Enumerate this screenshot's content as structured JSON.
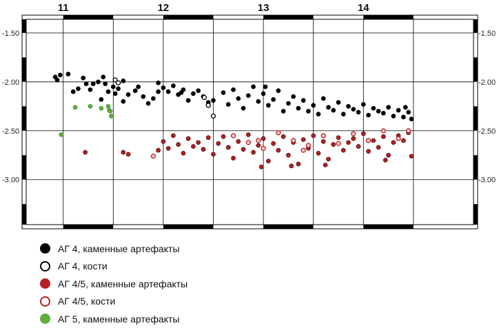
{
  "chart_data": {
    "type": "scatter",
    "title": "",
    "xlabel": "",
    "ylabel": "",
    "xlim": [
      10.63,
      15.1
    ],
    "ylim": [
      -3.46,
      -1.36
    ],
    "x_ticks": [
      11,
      12,
      13,
      14
    ],
    "y_ticks": [
      -1.5,
      -2.0,
      -2.5,
      -3.0
    ],
    "y_tick_labels": [
      "-1.50",
      "-2.00",
      "-2.50",
      "-3.00"
    ],
    "grid": true,
    "legend_position": "bottom",
    "colors": {
      "stone4": "#000000",
      "bone4": "#ffffff",
      "stone45": "#b52022",
      "bone45": "#f6cccc",
      "stone5": "#5fad3f"
    },
    "series": [
      {
        "name": "АГ 4, каменные артефакты",
        "marker": "filled",
        "color": "#000000",
        "points": [
          [
            10.92,
            -1.95
          ],
          [
            10.94,
            -1.98
          ],
          [
            10.97,
            -1.93
          ],
          [
            11.05,
            -1.92
          ],
          [
            11.1,
            -2.1
          ],
          [
            11.15,
            -2.07
          ],
          [
            11.2,
            -1.96
          ],
          [
            11.23,
            -2.02
          ],
          [
            11.27,
            -2.08
          ],
          [
            11.3,
            -2.02
          ],
          [
            11.35,
            -2.0
          ],
          [
            11.4,
            -1.95
          ],
          [
            11.45,
            -2.1
          ],
          [
            11.5,
            -2.05
          ],
          [
            11.55,
            -2.07
          ],
          [
            11.6,
            -1.99
          ],
          [
            11.65,
            -2.13
          ],
          [
            11.72,
            -2.09
          ],
          [
            11.75,
            -2.05
          ],
          [
            11.8,
            -2.15
          ],
          [
            11.85,
            -2.22
          ],
          [
            11.9,
            -2.17
          ],
          [
            11.95,
            -2.1
          ],
          [
            12.0,
            -2.06
          ],
          [
            12.05,
            -2.1
          ],
          [
            12.1,
            -2.04
          ],
          [
            12.15,
            -2.13
          ],
          [
            12.2,
            -2.08
          ],
          [
            12.25,
            -2.19
          ],
          [
            12.3,
            -2.12
          ],
          [
            12.35,
            -2.09
          ],
          [
            12.4,
            -2.15
          ],
          [
            12.45,
            -2.21
          ],
          [
            12.5,
            -2.19
          ],
          [
            12.6,
            -2.11
          ],
          [
            12.65,
            -2.23
          ],
          [
            12.7,
            -2.08
          ],
          [
            12.75,
            -2.17
          ],
          [
            12.8,
            -2.27
          ],
          [
            12.85,
            -2.14
          ],
          [
            12.9,
            -2.05
          ],
          [
            12.95,
            -2.2
          ],
          [
            13.0,
            -2.12
          ],
          [
            13.05,
            -2.24
          ],
          [
            13.1,
            -2.18
          ],
          [
            13.15,
            -2.09
          ],
          [
            13.2,
            -2.3
          ],
          [
            13.25,
            -2.22
          ],
          [
            13.3,
            -2.15
          ],
          [
            13.35,
            -2.27
          ],
          [
            13.4,
            -2.19
          ],
          [
            13.45,
            -2.3
          ],
          [
            13.5,
            -2.24
          ],
          [
            13.55,
            -2.33
          ],
          [
            13.6,
            -2.17
          ],
          [
            13.65,
            -2.26
          ],
          [
            13.7,
            -2.29
          ],
          [
            13.75,
            -2.21
          ],
          [
            13.8,
            -2.33
          ],
          [
            13.85,
            -2.25
          ],
          [
            13.9,
            -2.28
          ],
          [
            13.95,
            -2.31
          ],
          [
            14.0,
            -2.23
          ],
          [
            14.05,
            -2.34
          ],
          [
            14.1,
            -2.27
          ],
          [
            14.15,
            -2.3
          ],
          [
            14.2,
            -2.32
          ],
          [
            14.25,
            -2.26
          ],
          [
            14.3,
            -2.35
          ],
          [
            14.35,
            -2.29
          ],
          [
            14.4,
            -2.36
          ],
          [
            14.45,
            -2.31
          ],
          [
            14.48,
            -2.38
          ],
          [
            11.6,
            -2.2
          ],
          [
            11.52,
            -2.12
          ],
          [
            11.38,
            -2.18
          ],
          [
            11.95,
            -2.01
          ],
          [
            11.42,
            -2.02
          ],
          [
            12.18,
            -2.11
          ],
          [
            13.02,
            -2.05
          ],
          [
            14.42,
            -2.26
          ]
        ]
      },
      {
        "name": "АГ 4, кости",
        "marker": "open",
        "color": "#000000",
        "points": [
          [
            11.52,
            -1.98
          ],
          [
            11.55,
            -2.01
          ],
          [
            12.41,
            -2.16
          ],
          [
            12.45,
            -2.24
          ],
          [
            12.5,
            -2.35
          ]
        ]
      },
      {
        "name": "АГ 4/5, каменные артефакты",
        "marker": "filled",
        "color": "#b52022",
        "points": [
          [
            11.22,
            -2.72
          ],
          [
            11.6,
            -2.72
          ],
          [
            11.65,
            -2.74
          ],
          [
            11.95,
            -2.7
          ],
          [
            12.0,
            -2.61
          ],
          [
            12.05,
            -2.68
          ],
          [
            12.1,
            -2.55
          ],
          [
            12.15,
            -2.64
          ],
          [
            12.2,
            -2.73
          ],
          [
            12.25,
            -2.58
          ],
          [
            12.3,
            -2.66
          ],
          [
            12.35,
            -2.62
          ],
          [
            12.4,
            -2.69
          ],
          [
            12.45,
            -2.57
          ],
          [
            12.5,
            -2.74
          ],
          [
            12.55,
            -2.63
          ],
          [
            12.6,
            -2.56
          ],
          [
            12.65,
            -2.67
          ],
          [
            12.7,
            -2.78
          ],
          [
            12.75,
            -2.61
          ],
          [
            12.8,
            -2.69
          ],
          [
            12.85,
            -2.54
          ],
          [
            12.9,
            -2.72
          ],
          [
            12.95,
            -2.65
          ],
          [
            13.0,
            -2.58
          ],
          [
            13.05,
            -2.81
          ],
          [
            13.1,
            -2.63
          ],
          [
            13.15,
            -2.7
          ],
          [
            13.2,
            -2.56
          ],
          [
            13.25,
            -2.75
          ],
          [
            13.3,
            -2.62
          ],
          [
            13.35,
            -2.84
          ],
          [
            13.4,
            -2.59
          ],
          [
            13.45,
            -2.68
          ],
          [
            13.5,
            -2.55
          ],
          [
            13.55,
            -2.73
          ],
          [
            13.6,
            -2.61
          ],
          [
            13.65,
            -2.79
          ],
          [
            13.7,
            -2.64
          ],
          [
            13.75,
            -2.57
          ],
          [
            13.8,
            -2.7
          ],
          [
            13.85,
            -2.62
          ],
          [
            13.9,
            -2.58
          ],
          [
            13.95,
            -2.66
          ],
          [
            14.0,
            -2.53
          ],
          [
            14.05,
            -2.71
          ],
          [
            14.1,
            -2.6
          ],
          [
            14.15,
            -2.67
          ],
          [
            14.2,
            -2.56
          ],
          [
            14.25,
            -2.75
          ],
          [
            14.3,
            -2.62
          ],
          [
            14.35,
            -2.55
          ],
          [
            14.4,
            -2.6
          ],
          [
            14.45,
            -2.52
          ],
          [
            14.48,
            -2.76
          ],
          [
            12.98,
            -2.87
          ],
          [
            13.28,
            -2.86
          ],
          [
            13.62,
            -2.85
          ],
          [
            14.22,
            -2.8
          ]
        ]
      },
      {
        "name": "АГ 4/5, кости",
        "marker": "open",
        "color": "#b52022",
        "points": [
          [
            11.9,
            -2.76
          ],
          [
            12.7,
            -2.55
          ],
          [
            12.85,
            -2.62
          ],
          [
            13.0,
            -2.68
          ],
          [
            13.15,
            -2.52
          ],
          [
            13.3,
            -2.6
          ],
          [
            13.45,
            -2.65
          ],
          [
            13.6,
            -2.55
          ],
          [
            13.75,
            -2.63
          ],
          [
            13.9,
            -2.53
          ],
          [
            14.05,
            -2.6
          ],
          [
            14.2,
            -2.5
          ],
          [
            14.35,
            -2.58
          ],
          [
            14.45,
            -2.5
          ],
          [
            12.95,
            -2.6
          ],
          [
            13.4,
            -2.7
          ]
        ]
      },
      {
        "name": "АГ 5, каменные артефакты",
        "marker": "filled",
        "color": "#5fad3f",
        "points": [
          [
            11.12,
            -2.26
          ],
          [
            11.27,
            -2.25
          ],
          [
            11.38,
            -2.27
          ],
          [
            11.45,
            -2.25
          ],
          [
            11.46,
            -2.29
          ],
          [
            11.47,
            -2.3
          ],
          [
            11.48,
            -2.35
          ],
          [
            10.98,
            -2.54
          ]
        ]
      }
    ]
  }
}
